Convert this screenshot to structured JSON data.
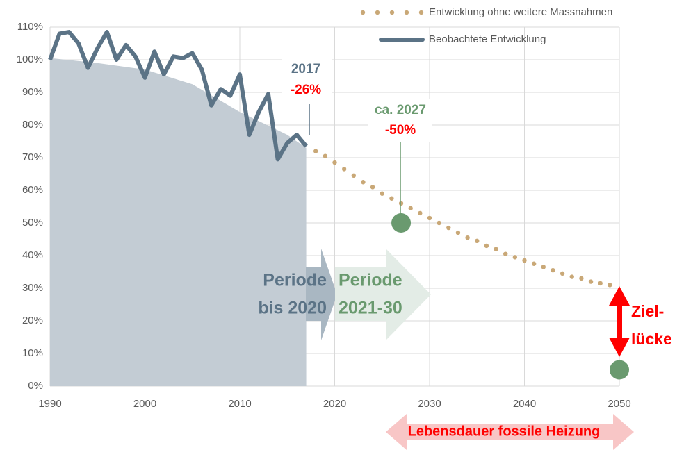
{
  "chart_data": {
    "type": "line",
    "xlim": [
      1990,
      2050
    ],
    "ylim": [
      0,
      110
    ],
    "xticks": [
      1990,
      2000,
      2010,
      2020,
      2030,
      2040,
      2050
    ],
    "yticks": [
      {
        "value": 0,
        "label": "0%"
      },
      {
        "value": 10,
        "label": "10%"
      },
      {
        "value": 20,
        "label": "20%"
      },
      {
        "value": 30,
        "label": "30%"
      },
      {
        "value": 40,
        "label": "40%"
      },
      {
        "value": 50,
        "label": "50%"
      },
      {
        "value": 60,
        "label": "60%"
      },
      {
        "value": 70,
        "label": "70%"
      },
      {
        "value": 80,
        "label": "80%"
      },
      {
        "value": 90,
        "label": "90%"
      },
      {
        "value": 100,
        "label": "100%"
      },
      {
        "value": 110,
        "label": "110%"
      }
    ],
    "grid": true,
    "series": [
      {
        "name": "Entwicklung ohne weitere Massnahmen",
        "color": "#c9a877",
        "style": "dotted",
        "x": [
          2018,
          2019,
          2020,
          2021,
          2022,
          2023,
          2024,
          2025,
          2026,
          2027,
          2028,
          2029,
          2030,
          2031,
          2032,
          2033,
          2034,
          2035,
          2036,
          2037,
          2038,
          2039,
          2040,
          2041,
          2042,
          2043,
          2044,
          2045,
          2046,
          2047,
          2048,
          2049
        ],
        "values": [
          72,
          70.5,
          68.5,
          66.5,
          64.5,
          62.5,
          61,
          59,
          57.5,
          56,
          54.5,
          53,
          51.5,
          50,
          48.5,
          47,
          45.5,
          44.5,
          43,
          42,
          40.5,
          39.5,
          38.5,
          37.5,
          36.5,
          35.5,
          34.5,
          33.5,
          33,
          32,
          31.5,
          31
        ]
      },
      {
        "name": "Beobachtete Entwicklung",
        "color": "#5b7386",
        "style": "solid",
        "x": [
          1990,
          1991,
          1992,
          1993,
          1994,
          1995,
          1996,
          1997,
          1998,
          1999,
          2000,
          2001,
          2002,
          2003,
          2004,
          2005,
          2006,
          2007,
          2008,
          2009,
          2010,
          2011,
          2012,
          2013,
          2014,
          2015,
          2016,
          2017
        ],
        "values": [
          100,
          108,
          108.5,
          105,
          97.5,
          103.5,
          108.5,
          100,
          104.5,
          101,
          94.5,
          102.5,
          95.5,
          101,
          100.5,
          102,
          97,
          86,
          91,
          89,
          95.5,
          77,
          84,
          89.5,
          69.5,
          74.5,
          77,
          73.5
        ]
      }
    ],
    "history_area": {
      "color": "#c3ccd4",
      "x": [
        1990,
        1995,
        2000,
        2005,
        2010,
        2015,
        2017
      ],
      "values": [
        100.5,
        99,
        97,
        92.5,
        84,
        77,
        73
      ]
    },
    "targets": {
      "color": "#6a9a6f",
      "x": [
        2027,
        2050
      ],
      "values": [
        50,
        5
      ]
    },
    "annotations": {
      "year_2017": "2017",
      "change_2017": "-26%",
      "year_2027": "ca. 2027",
      "change_2027": "-50%",
      "period_1": [
        "Periode",
        "bis 2020"
      ],
      "period_2": [
        "Periode",
        "2021-30"
      ],
      "gap": [
        "Ziel-",
        "lücke"
      ],
      "lifetime": "Lebensdauer fossile Heizung"
    }
  }
}
